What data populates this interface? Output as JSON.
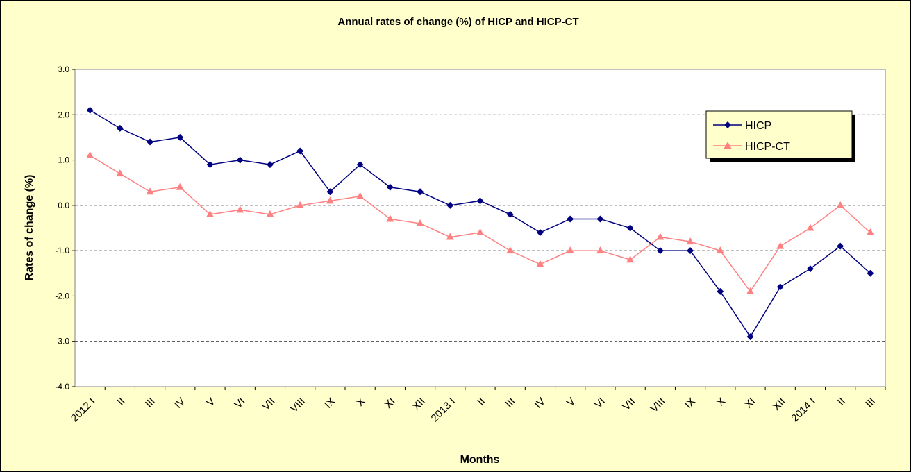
{
  "chart_data": {
    "type": "line",
    "title": "Annual rates of change (%) of HICP and HICP-CT",
    "x_label": "Months",
    "y_label": "Rates of change (%)",
    "categories": [
      "2012 I",
      "II",
      "III",
      "IV",
      "V",
      "VI",
      "VII",
      "VIII",
      "IX",
      "X",
      "XI",
      "XII",
      "2013 I",
      "II",
      "III",
      "IV",
      "V",
      "VI",
      "VII",
      "VIII",
      "IX",
      "X",
      "XI",
      "XII",
      "2014 I",
      "II",
      "III"
    ],
    "series": [
      {
        "name": "HICP",
        "color": "#000080",
        "marker": "diamond",
        "values": [
          2.1,
          1.7,
          1.4,
          1.5,
          0.9,
          1.0,
          0.9,
          1.2,
          0.3,
          0.9,
          0.4,
          0.3,
          0.0,
          0.1,
          -0.2,
          -0.6,
          -0.3,
          -0.3,
          -0.5,
          -1.0,
          -1.0,
          -1.9,
          -2.9,
          -1.8,
          -1.4,
          -0.9,
          -1.5
        ]
      },
      {
        "name": "HICP-CT",
        "color": "#FF8080",
        "marker": "triangle",
        "values": [
          1.1,
          0.7,
          0.3,
          0.4,
          -0.2,
          -0.1,
          -0.2,
          0.0,
          0.1,
          0.2,
          -0.3,
          -0.4,
          -0.7,
          -0.6,
          -1.0,
          -1.3,
          -1.0,
          -1.0,
          -1.2,
          -0.7,
          -0.8,
          -1.0,
          -1.9,
          -0.9,
          -0.5,
          0.0,
          -0.6
        ]
      }
    ],
    "ylim": [
      -4,
      3
    ],
    "yticks": [
      {
        "value": -4,
        "label": "-4.0"
      },
      {
        "value": -3,
        "label": "-3.0"
      },
      {
        "value": -2,
        "label": "-2.0"
      },
      {
        "value": -1,
        "label": "-1.0"
      },
      {
        "value": 0,
        "label": "0.0"
      },
      {
        "value": 1,
        "label": "1.0"
      },
      {
        "value": 2,
        "label": "2.0"
      },
      {
        "value": 3,
        "label": "3.0"
      }
    ],
    "grid": true,
    "legend": "top-right"
  }
}
